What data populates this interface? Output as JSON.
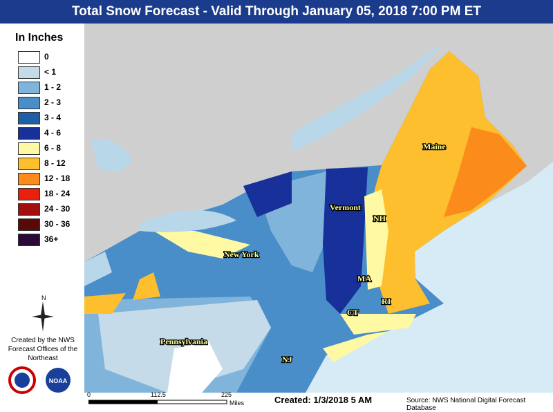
{
  "header": {
    "title": "Total Snow Forecast - Valid Through January 05, 2018 7:00 PM ET"
  },
  "legend": {
    "title": "In Inches",
    "items": [
      {
        "label": "0",
        "color": "#ffffff"
      },
      {
        "label": "< 1",
        "color": "#c6dbe9"
      },
      {
        "label": "1 - 2",
        "color": "#80b4da"
      },
      {
        "label": "2 - 3",
        "color": "#4a8ec9"
      },
      {
        "label": "3 - 4",
        "color": "#1f5fa8"
      },
      {
        "label": "4 - 6",
        "color": "#17309a"
      },
      {
        "label": "6 - 8",
        "color": "#fff9a3"
      },
      {
        "label": "8 - 12",
        "color": "#fdbf2d"
      },
      {
        "label": "12 - 18",
        "color": "#fb8c1b"
      },
      {
        "label": "18 - 24",
        "color": "#e8200c"
      },
      {
        "label": "24 - 30",
        "color": "#a30f0f"
      },
      {
        "label": "30 - 36",
        "color": "#5a0909"
      },
      {
        "label": "36+",
        "color": "#2b0a3a"
      }
    ]
  },
  "map": {
    "labels": [
      "Maine",
      "Vermont",
      "NH",
      "New York",
      "MA",
      "RI",
      "CT",
      "Pennsylvania",
      "NJ"
    ]
  },
  "compass": "N",
  "credit": "Created by the NWS Forecast Offices of the Northeast",
  "logo": "NOAA",
  "scale": {
    "ticks": [
      "0",
      "112.5",
      "225"
    ],
    "unit": "Miles"
  },
  "footer": {
    "created": "Created: 1/3/2018 5 AM",
    "source": "Source: NWS National Digital Forecast Database"
  }
}
